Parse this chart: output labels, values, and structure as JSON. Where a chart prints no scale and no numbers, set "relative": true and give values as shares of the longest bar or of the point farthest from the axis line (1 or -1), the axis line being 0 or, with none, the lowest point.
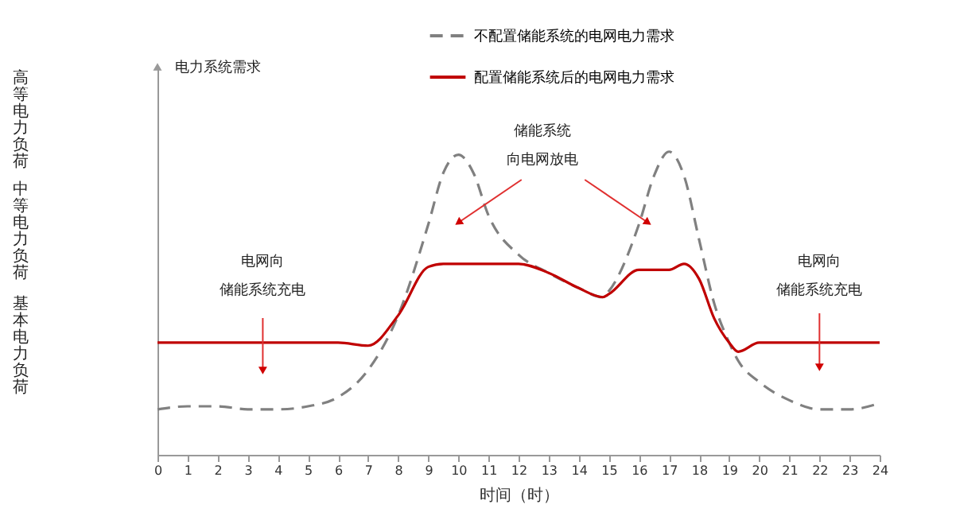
{
  "chart_data": {
    "type": "line",
    "relative": true,
    "xlabel": "时间（时）",
    "x": [
      0,
      1,
      2,
      3,
      4,
      5,
      6,
      7,
      8,
      9,
      9.5,
      10,
      10.5,
      11,
      12,
      13,
      14,
      14.8,
      15,
      16,
      16.5,
      17,
      17.5,
      18,
      18.5,
      19,
      19.3,
      20,
      21,
      22,
      23,
      24
    ],
    "series": [
      {
        "name": "不配置储能系统的电网电力需求",
        "color": "#808080",
        "line_style": "dashed",
        "values": [
          0.15,
          0.16,
          0.16,
          0.15,
          0.15,
          0.16,
          0.19,
          0.28,
          0.46,
          0.76,
          0.93,
          0.99,
          0.93,
          0.79,
          0.66,
          0.6,
          0.55,
          0.52,
          0.54,
          0.76,
          0.92,
          1.0,
          0.92,
          0.71,
          0.5,
          0.37,
          0.31,
          0.24,
          0.18,
          0.15,
          0.15,
          0.17
        ]
      },
      {
        "name": "配置储能系统后的电网电力需求",
        "color": "#c00000",
        "line_style": "solid",
        "values": [
          0.37,
          0.37,
          0.37,
          0.37,
          0.37,
          0.37,
          0.37,
          0.36,
          0.46,
          0.62,
          0.63,
          0.63,
          0.63,
          0.63,
          0.63,
          0.6,
          0.55,
          0.52,
          0.53,
          0.61,
          0.61,
          0.61,
          0.63,
          0.58,
          0.45,
          0.37,
          0.34,
          0.37,
          0.37,
          0.37,
          0.37,
          0.37
        ]
      }
    ],
    "xlim": [
      0,
      24
    ],
    "xticks": [
      0,
      1,
      2,
      3,
      4,
      5,
      6,
      7,
      8,
      9,
      10,
      11,
      12,
      13,
      14,
      15,
      16,
      17,
      18,
      19,
      20,
      21,
      22,
      23,
      24
    ],
    "grid": false,
    "legend": "top",
    "marker": "none",
    "annotations": [
      "电力系统需求",
      "高等电力负荷",
      "中等电力负荷",
      "基本电力负荷",
      "储能系统",
      "向电网放电",
      "电网向",
      "储能系统充电",
      "电网向",
      "储能系统充电"
    ]
  }
}
